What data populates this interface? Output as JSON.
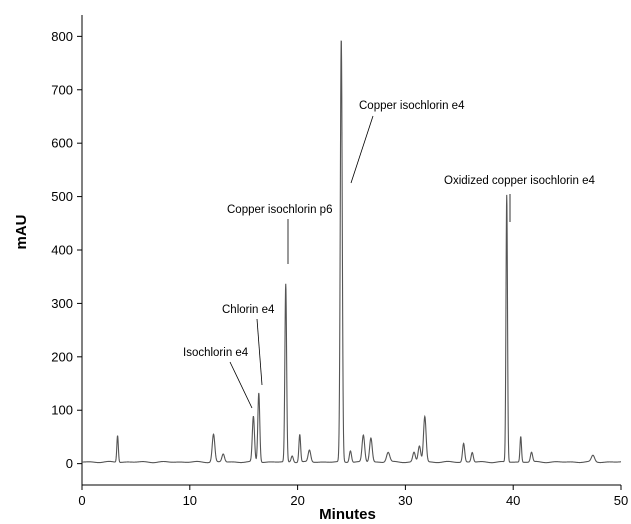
{
  "chart_data": {
    "type": "line",
    "xlabel": "Minutes",
    "ylabel": "mAU",
    "xlim": [
      0,
      50
    ],
    "ylim": [
      -40,
      840
    ],
    "x_ticks": [
      0,
      10,
      20,
      30,
      40,
      50
    ],
    "y_ticks": [
      0,
      100,
      200,
      300,
      400,
      500,
      600,
      700,
      800
    ],
    "grid": false,
    "line_color": "#555555",
    "baseline": 3,
    "peaks": [
      {
        "t": 3.3,
        "h": 50,
        "w": 0.07
      },
      {
        "t": 12.2,
        "h": 52,
        "w": 0.12
      },
      {
        "t": 13.1,
        "h": 15,
        "w": 0.12
      },
      {
        "t": 15.9,
        "h": 85,
        "w": 0.1
      },
      {
        "t": 16.4,
        "h": 130,
        "w": 0.09
      },
      {
        "t": 18.9,
        "h": 333,
        "w": 0.08
      },
      {
        "t": 19.5,
        "h": 12,
        "w": 0.1
      },
      {
        "t": 20.2,
        "h": 52,
        "w": 0.08
      },
      {
        "t": 21.1,
        "h": 22,
        "w": 0.12
      },
      {
        "t": 24.05,
        "h": 792,
        "w": 0.09
      },
      {
        "t": 24.9,
        "h": 22,
        "w": 0.1
      },
      {
        "t": 26.1,
        "h": 50,
        "w": 0.12
      },
      {
        "t": 26.8,
        "h": 45,
        "w": 0.12
      },
      {
        "t": 28.4,
        "h": 18,
        "w": 0.15
      },
      {
        "t": 30.8,
        "h": 18,
        "w": 0.12
      },
      {
        "t": 31.3,
        "h": 30,
        "w": 0.12
      },
      {
        "t": 31.8,
        "h": 85,
        "w": 0.12
      },
      {
        "t": 35.4,
        "h": 35,
        "w": 0.1
      },
      {
        "t": 36.2,
        "h": 18,
        "w": 0.1
      },
      {
        "t": 39.4,
        "h": 500,
        "w": 0.07
      },
      {
        "t": 40.7,
        "h": 48,
        "w": 0.07
      },
      {
        "t": 41.7,
        "h": 18,
        "w": 0.1
      },
      {
        "t": 47.4,
        "h": 12,
        "w": 0.15
      }
    ],
    "annotations": [
      {
        "text": "Isochlorin e4",
        "peak_t": 15.9,
        "peak_y": 85
      },
      {
        "text": "Chlorin e4",
        "peak_t": 16.4,
        "peak_y": 130
      },
      {
        "text": "Copper isochlorin p6",
        "peak_t": 18.9,
        "peak_y": 333
      },
      {
        "text": "Copper isochlorin e4",
        "peak_t": 24.05,
        "peak_y": 792
      },
      {
        "text": "Oxidized copper isochlorin e4",
        "peak_t": 39.4,
        "peak_y": 500
      }
    ]
  }
}
